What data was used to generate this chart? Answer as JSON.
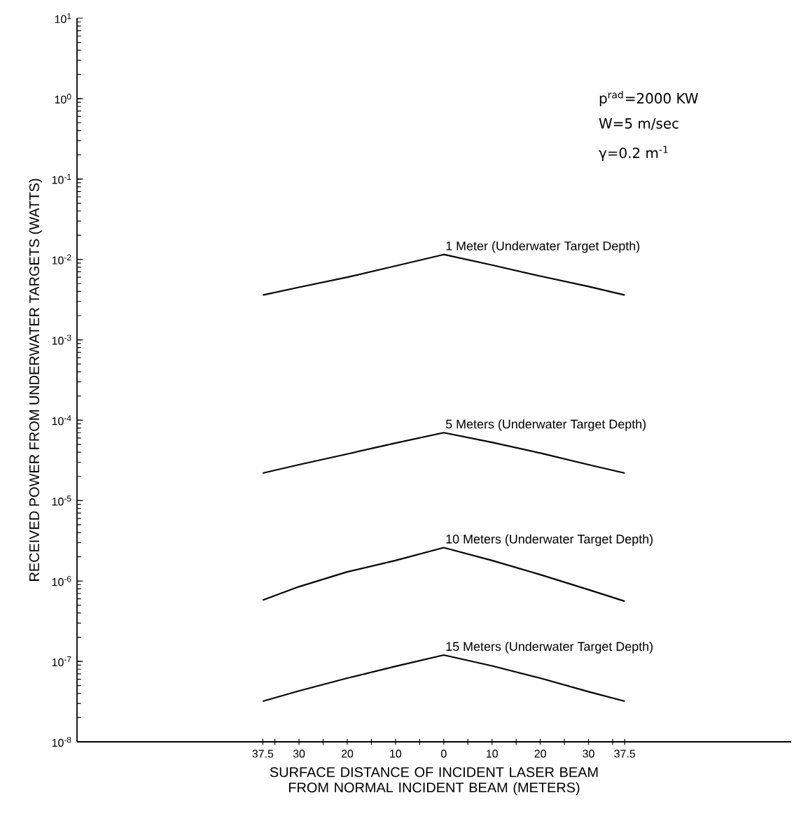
{
  "chart_data": {
    "type": "line",
    "xlabel": "SURFACE DISTANCE OF INCIDENT LASER BEAM FROM NORMAL INCIDENT BEAM (METERS)",
    "ylabel": "RECEIVED POWER FROM UNDERWATER TARGETS (WATTS)",
    "annotations": [
      "p$^{rad}$=2000 KW",
      "W=5 m/sec",
      "γ=0.2 m$^{-1}$"
    ],
    "x": [
      -37.5,
      -30,
      -20,
      -10,
      0,
      10,
      20,
      30,
      37.5
    ],
    "series": [
      {
        "name": "1 Meter (Underwater Target Depth)",
        "color": "#000000",
        "values": [
          0.0036,
          0.0045,
          0.006,
          0.0083,
          0.0115,
          0.0085,
          0.0062,
          0.0046,
          0.0036
        ]
      },
      {
        "name": "5 Meters (Underwater Target Depth)",
        "color": "#000000",
        "values": [
          2.2e-05,
          2.8e-05,
          3.8e-05,
          5.2e-05,
          7e-05,
          5.3e-05,
          3.9e-05,
          2.8e-05,
          2.2e-05
        ]
      },
      {
        "name": "10 Meters (Underwater Target Depth)",
        "color": "#000000",
        "values": [
          5.8e-07,
          8.5e-07,
          1.3e-06,
          1.8e-06,
          2.6e-06,
          1.8e-06,
          1.2e-06,
          7.8e-07,
          5.6e-07
        ]
      },
      {
        "name": "15 Meters (Underwater Target Depth)",
        "color": "#000000",
        "values": [
          3.2e-08,
          4.3e-08,
          6.2e-08,
          8.7e-08,
          1.2e-07,
          8.8e-08,
          6.2e-08,
          4.2e-08,
          3.2e-08
        ]
      }
    ],
    "log": "y",
    "marker": "none",
    "line_style": "solid",
    "grid": false,
    "legend": false,
    "xlim": [
      -76,
      72
    ],
    "xticks": [
      {
        "value": -37.5,
        "label": "37.5"
      },
      {
        "value": -35,
        "label": null
      },
      {
        "value": -30,
        "label": "30"
      },
      {
        "value": -25,
        "label": null
      },
      {
        "value": -20,
        "label": "20"
      },
      {
        "value": -15,
        "label": null
      },
      {
        "value": -10,
        "label": "10"
      },
      {
        "value": -5,
        "label": null
      },
      {
        "value": 0,
        "label": "0"
      },
      {
        "value": 5,
        "label": null
      },
      {
        "value": 10,
        "label": "10"
      },
      {
        "value": 15,
        "label": null
      },
      {
        "value": 20,
        "label": "20"
      },
      {
        "value": 25,
        "label": null
      },
      {
        "value": 30,
        "label": "30"
      },
      {
        "value": 35,
        "label": null
      },
      {
        "value": 37.5,
        "label": "37.5"
      }
    ],
    "ylim": [
      1e-08,
      10
    ],
    "yticks": [
      {
        "value": 1e-08,
        "label": "10$^{-8}$"
      },
      {
        "value": 1e-07,
        "label": "10$^{-7}$"
      },
      {
        "value": 1e-06,
        "label": "10$^{-6}$"
      },
      {
        "value": 1e-05,
        "label": "10$^{-5}$"
      },
      {
        "value": 0.0001,
        "label": "10$^{-4}$"
      },
      {
        "value": 0.001,
        "label": "10$^{-3}$"
      },
      {
        "value": 0.01,
        "label": "10$^{-2}$"
      },
      {
        "value": 0.1,
        "label": "10$^{-1}$"
      },
      {
        "value": 1,
        "label": "10$^{0}$"
      },
      {
        "value": 10,
        "label": "10$^{1}$"
      }
    ]
  }
}
